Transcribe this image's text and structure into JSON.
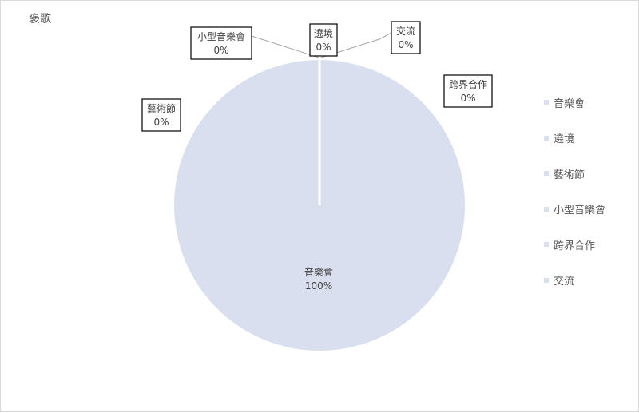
{
  "chart_data": {
    "type": "pie",
    "title": "褒歌",
    "categories": [
      "音樂會",
      "遶境",
      "藝術節",
      "小型音樂會",
      "跨界合作",
      "交流"
    ],
    "values": [
      100,
      0,
      0,
      0,
      0,
      0
    ],
    "value_labels": [
      "100%",
      "0%",
      "0%",
      "0%",
      "0%",
      "0%"
    ],
    "legend": {
      "position": "right",
      "entries": [
        "音樂會",
        "遶境",
        "藝術節",
        "小型音樂會",
        "跨界合作",
        "交流"
      ]
    },
    "colors": {
      "slice": "#dadfef",
      "slice_border": "#ffffff",
      "label_border": "#000000",
      "leader_line": "#a6a6a6",
      "text": "#404040"
    }
  }
}
